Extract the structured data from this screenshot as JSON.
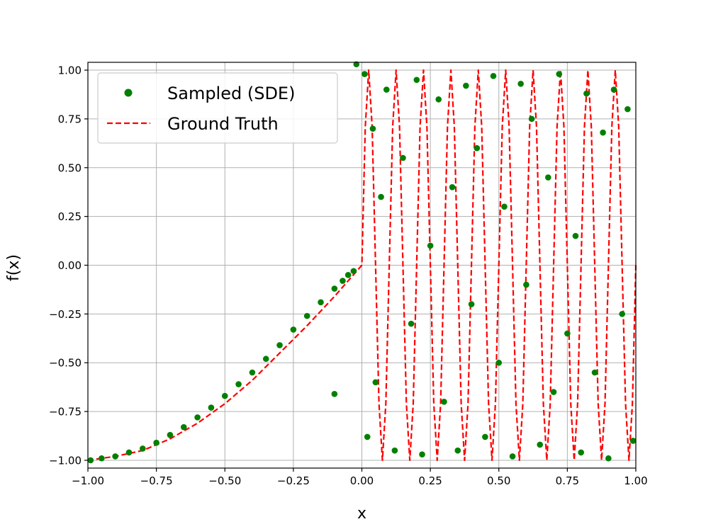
{
  "chart_data": {
    "type": "scatter",
    "xlabel": "x",
    "ylabel": "f(x)",
    "xlim": [
      -1.0,
      1.0
    ],
    "ylim": [
      -1.04,
      1.04
    ],
    "grid": true,
    "legend_position": "top-left",
    "xticks": [
      "−1.00",
      "−0.75",
      "−0.50",
      "−0.25",
      "0.00",
      "0.25",
      "0.50",
      "0.75",
      "1.00"
    ],
    "yticks": [
      "−1.00",
      "−0.75",
      "−0.50",
      "−0.25",
      "0.00",
      "0.25",
      "0.50",
      "0.75",
      "1.00"
    ],
    "colors": {
      "sampled": "#008000",
      "ground_truth": "#ff0000",
      "grid": "#b0b0b0"
    },
    "series": [
      {
        "name": "Sampled (SDE)",
        "kind": "scatter",
        "color": "#008000",
        "points": [
          [
            -0.99,
            -1.0
          ],
          [
            -0.95,
            -0.99
          ],
          [
            -0.9,
            -0.98
          ],
          [
            -0.85,
            -0.96
          ],
          [
            -0.8,
            -0.94
          ],
          [
            -0.75,
            -0.91
          ],
          [
            -0.7,
            -0.87
          ],
          [
            -0.65,
            -0.83
          ],
          [
            -0.6,
            -0.78
          ],
          [
            -0.55,
            -0.73
          ],
          [
            -0.5,
            -0.67
          ],
          [
            -0.45,
            -0.61
          ],
          [
            -0.4,
            -0.55
          ],
          [
            -0.35,
            -0.48
          ],
          [
            -0.3,
            -0.41
          ],
          [
            -0.25,
            -0.33
          ],
          [
            -0.2,
            -0.26
          ],
          [
            -0.15,
            -0.19
          ],
          [
            -0.1,
            -0.12
          ],
          [
            -0.07,
            -0.08
          ],
          [
            -0.05,
            -0.05
          ],
          [
            -0.03,
            -0.03
          ],
          [
            -0.1,
            -0.66
          ],
          [
            -0.02,
            1.03
          ],
          [
            0.01,
            0.98
          ],
          [
            0.02,
            -0.88
          ],
          [
            0.04,
            0.7
          ],
          [
            0.05,
            -0.6
          ],
          [
            0.07,
            0.35
          ],
          [
            0.09,
            0.9
          ],
          [
            0.12,
            -0.95
          ],
          [
            0.15,
            0.55
          ],
          [
            0.18,
            -0.3
          ],
          [
            0.2,
            0.95
          ],
          [
            0.22,
            -0.97
          ],
          [
            0.25,
            0.1
          ],
          [
            0.28,
            0.85
          ],
          [
            0.3,
            -0.7
          ],
          [
            0.33,
            0.4
          ],
          [
            0.35,
            -0.95
          ],
          [
            0.38,
            0.92
          ],
          [
            0.4,
            -0.2
          ],
          [
            0.42,
            0.6
          ],
          [
            0.45,
            -0.88
          ],
          [
            0.48,
            0.97
          ],
          [
            0.5,
            -0.5
          ],
          [
            0.52,
            0.3
          ],
          [
            0.55,
            -0.98
          ],
          [
            0.58,
            0.93
          ],
          [
            0.6,
            -0.1
          ],
          [
            0.62,
            0.75
          ],
          [
            0.65,
            -0.92
          ],
          [
            0.68,
            0.45
          ],
          [
            0.7,
            -0.65
          ],
          [
            0.72,
            0.98
          ],
          [
            0.75,
            -0.35
          ],
          [
            0.78,
            0.15
          ],
          [
            0.8,
            -0.96
          ],
          [
            0.82,
            0.88
          ],
          [
            0.85,
            -0.55
          ],
          [
            0.88,
            0.68
          ],
          [
            0.9,
            -0.99
          ],
          [
            0.92,
            0.9
          ],
          [
            0.95,
            -0.25
          ],
          [
            0.97,
            0.8
          ],
          [
            0.99,
            -0.9
          ]
        ]
      },
      {
        "name": "Ground Truth",
        "kind": "line",
        "color": "#ff0000",
        "style": "dashed",
        "x": [
          -1.0,
          -0.9,
          -0.8,
          -0.7,
          -0.6,
          -0.5,
          -0.4,
          -0.3,
          -0.2,
          -0.1,
          0.0,
          0.0125,
          0.025,
          0.0375,
          0.05,
          0.0625,
          0.075,
          0.0875,
          0.1,
          0.1125,
          0.125,
          0.1375,
          0.15,
          0.1625,
          0.175,
          0.1875,
          0.2,
          0.2125,
          0.225,
          0.2375,
          0.25,
          0.2625,
          0.275,
          0.2875,
          0.3,
          0.3125,
          0.325,
          0.3375,
          0.35,
          0.3625,
          0.375,
          0.3875,
          0.4,
          0.4125,
          0.425,
          0.4375,
          0.45,
          0.4625,
          0.475,
          0.4875,
          0.5,
          0.5125,
          0.525,
          0.5375,
          0.55,
          0.5625,
          0.575,
          0.5875,
          0.6,
          0.6125,
          0.625,
          0.6375,
          0.65,
          0.6625,
          0.675,
          0.6875,
          0.7,
          0.7125,
          0.725,
          0.7375,
          0.75,
          0.7625,
          0.775,
          0.7875,
          0.8,
          0.8125,
          0.825,
          0.8375,
          0.85,
          0.8625,
          0.875,
          0.8875,
          0.9,
          0.9125,
          0.925,
          0.9375,
          0.95,
          0.9625,
          0.975,
          0.9875,
          1.0
        ],
        "y": [
          -1.0,
          -0.98,
          -0.95,
          -0.89,
          -0.81,
          -0.71,
          -0.59,
          -0.45,
          -0.31,
          -0.16,
          0.0,
          0.71,
          1.0,
          0.71,
          0.0,
          -0.71,
          -1.0,
          -0.71,
          0.0,
          0.71,
          1.0,
          0.71,
          0.0,
          -0.71,
          -1.0,
          -0.71,
          0.0,
          0.71,
          1.0,
          0.71,
          0.0,
          -0.71,
          -1.0,
          -0.71,
          0.0,
          0.71,
          1.0,
          0.71,
          0.0,
          -0.71,
          -1.0,
          -0.71,
          0.0,
          0.71,
          1.0,
          0.71,
          0.0,
          -0.71,
          -1.0,
          -0.71,
          0.0,
          0.71,
          1.0,
          0.71,
          0.0,
          -0.71,
          -1.0,
          -0.71,
          0.0,
          0.71,
          1.0,
          0.71,
          0.0,
          -0.71,
          -1.0,
          -0.71,
          0.0,
          0.71,
          1.0,
          0.71,
          0.0,
          -0.71,
          -1.0,
          -0.71,
          0.0,
          0.71,
          1.0,
          0.71,
          0.0,
          -0.71,
          -1.0,
          -0.71,
          0.0,
          0.71,
          1.0,
          0.71,
          0.0,
          -0.71,
          -1.0,
          -0.71,
          0.0
        ]
      }
    ]
  }
}
